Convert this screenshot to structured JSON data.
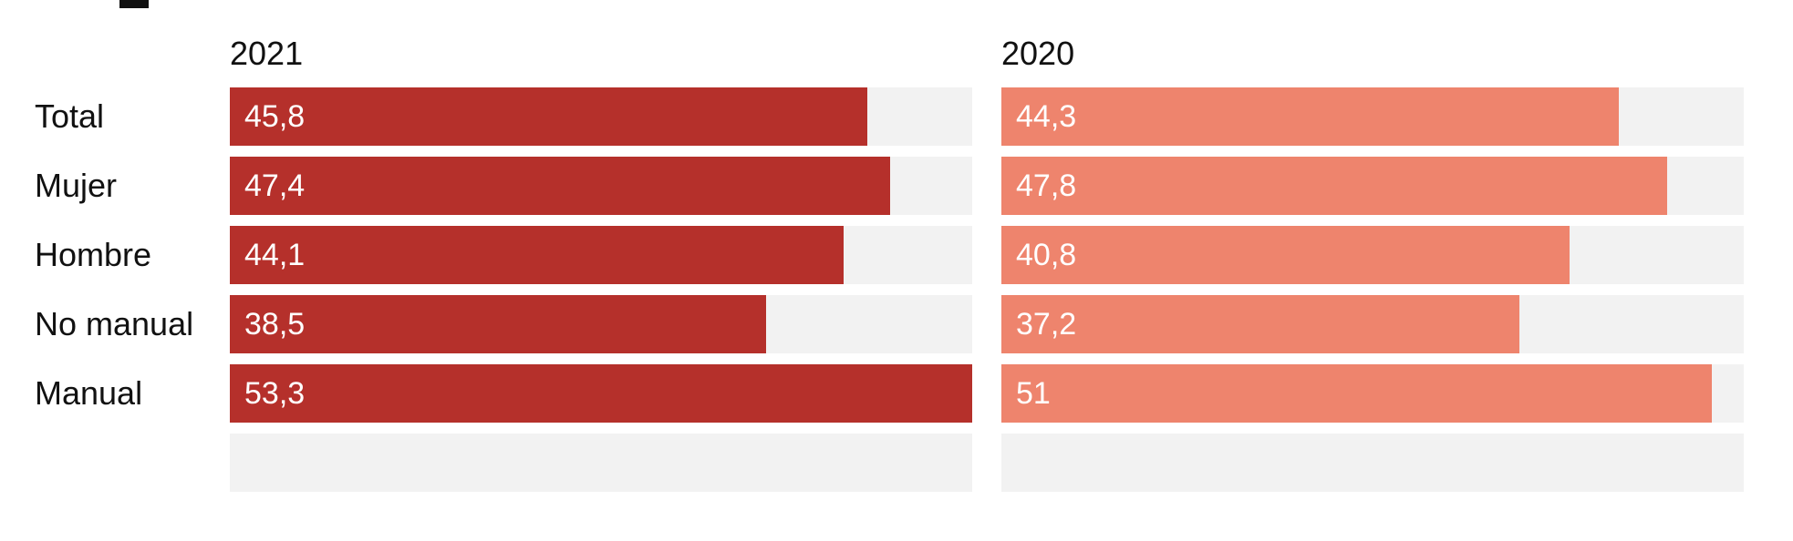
{
  "chart_data": {
    "type": "bar",
    "orientation": "horizontal",
    "categories": [
      "Total",
      "Mujer",
      "Hombre",
      "No manual",
      "Manual"
    ],
    "xlim": [
      0,
      53.3
    ],
    "grid": false,
    "legend": "none",
    "panels": [
      {
        "name": "2021",
        "color": "#b5302b",
        "values": [
          45.8,
          47.4,
          44.1,
          38.5,
          53.3
        ],
        "labels": [
          "45,8",
          "47,4",
          "44,1",
          "38,5",
          "53,3"
        ]
      },
      {
        "name": "2020",
        "color": "#ee846d",
        "values": [
          44.3,
          47.8,
          40.8,
          37.2,
          51
        ],
        "labels": [
          "44,3",
          "47,8",
          "40,8",
          "37,2",
          "51"
        ]
      }
    ],
    "track_color": "#f2f2f2"
  }
}
